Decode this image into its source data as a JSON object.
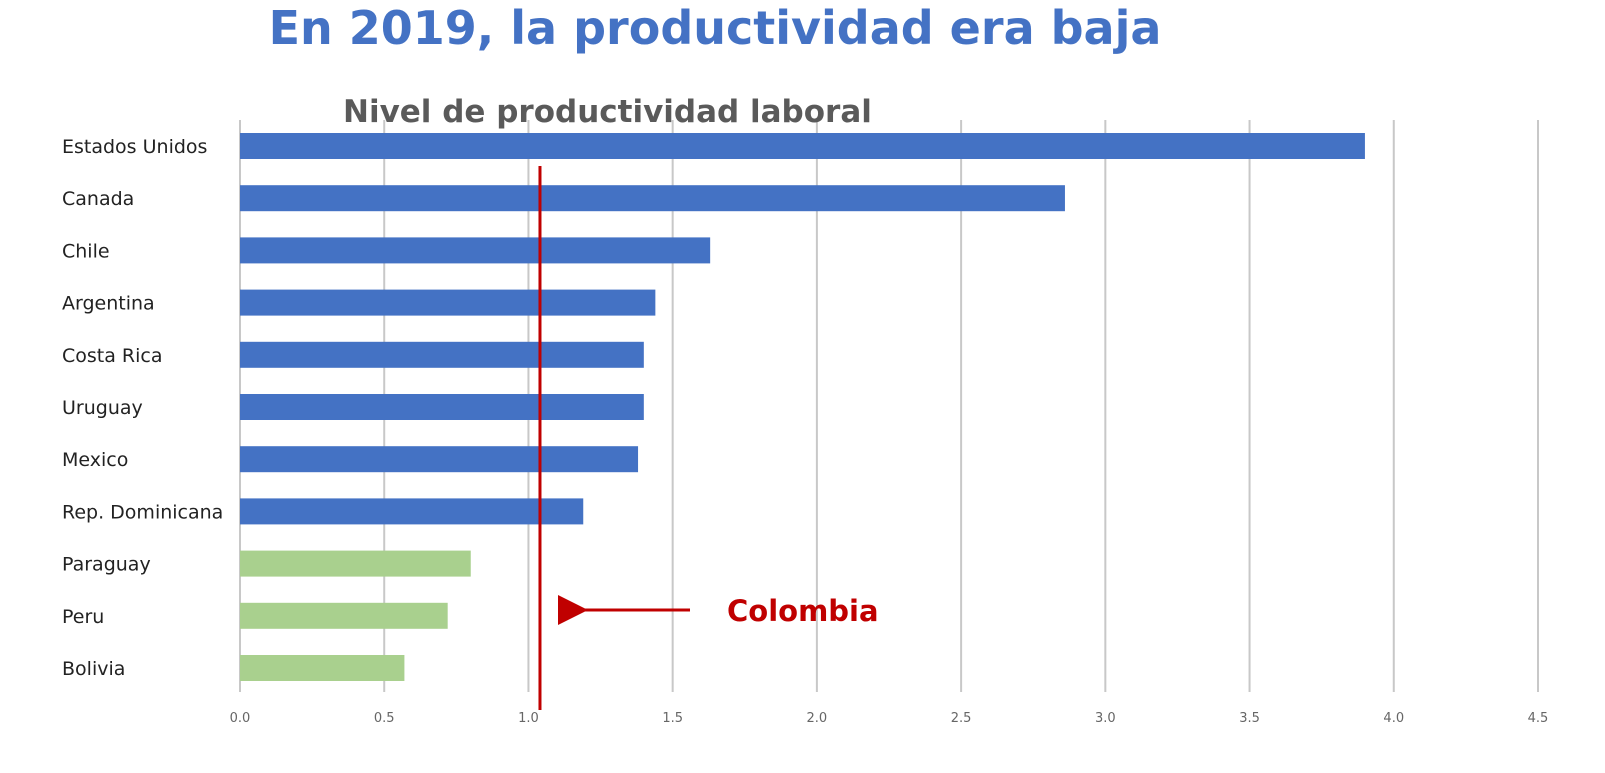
{
  "slide": {
    "title": "En 2019, la productividad era baja"
  },
  "chart_data": {
    "type": "bar",
    "orientation": "horizontal",
    "title": "Nivel de productividad laboral",
    "xlabel": "",
    "ylabel": "",
    "xlim": [
      0,
      4.5
    ],
    "x_ticks": [
      "0.0",
      "0.5",
      "1.0",
      "1.5",
      "2.0",
      "2.5",
      "3.0",
      "3.5",
      "4.0",
      "4.5"
    ],
    "x_tick_values": [
      0,
      0.5,
      1.0,
      1.5,
      2.0,
      2.5,
      3.0,
      3.5,
      4.0,
      4.5
    ],
    "grid": "vertical",
    "legend": "none",
    "categories": [
      "Estados Unidos",
      "Canada",
      "Chile",
      "Argentina",
      "Costa Rica",
      "Uruguay",
      "Mexico",
      "Rep. Dominicana",
      "Paraguay",
      "Peru",
      "Bolivia"
    ],
    "values": [
      3.9,
      2.86,
      1.63,
      1.44,
      1.4,
      1.4,
      1.38,
      1.19,
      0.8,
      0.72,
      0.57
    ],
    "bar_colors": [
      "#4472C4",
      "#4472C4",
      "#4472C4",
      "#4472C4",
      "#4472C4",
      "#4472C4",
      "#4472C4",
      "#4472C4",
      "#A9D08E",
      "#A9D08E",
      "#A9D08E"
    ],
    "reference_line": {
      "value": 1.04,
      "color": "#C00000",
      "label": "Colombia"
    }
  }
}
